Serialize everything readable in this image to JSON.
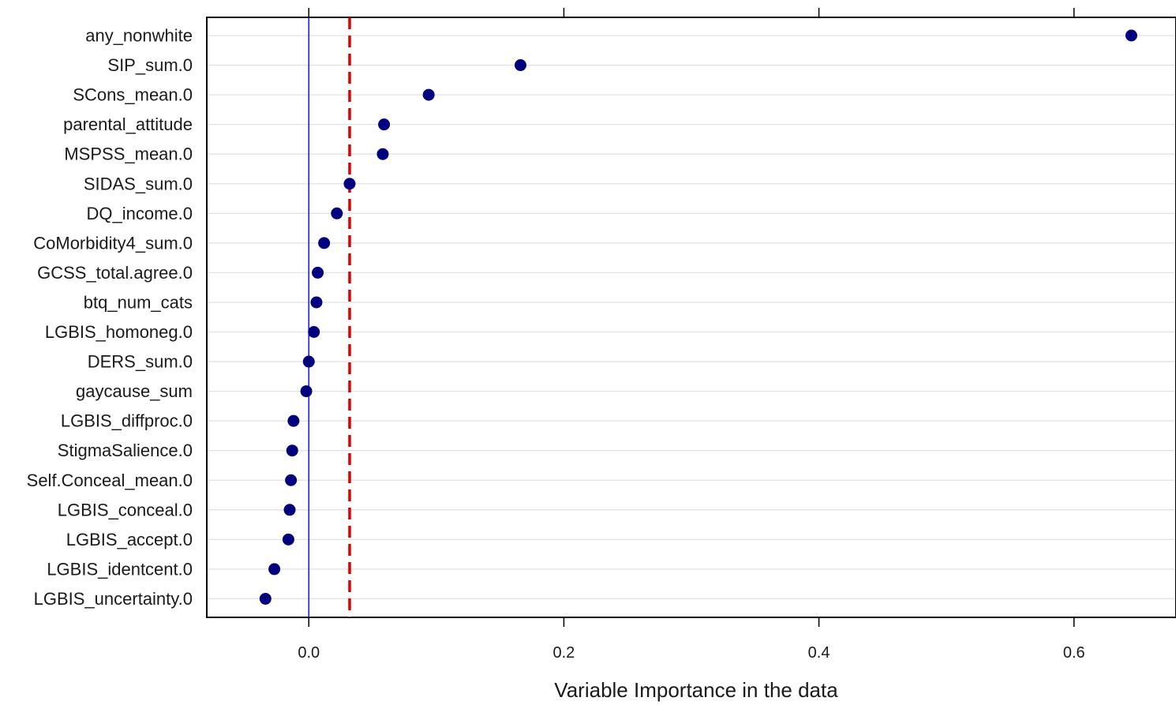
{
  "chart_data": {
    "type": "scatter",
    "xlabel": "Variable Importance in the data",
    "ylabel": "",
    "xlim": [
      -0.08,
      0.68
    ],
    "xticks": [
      0.0,
      0.2,
      0.4,
      0.6
    ],
    "xtick_labels": [
      "0.0",
      "0.2",
      "0.4",
      "0.6"
    ],
    "grid": "horizontal",
    "zero_line": 0.0,
    "threshold_line": 0.032,
    "point_color": "#000080",
    "zero_line_color": "#1f1fe0",
    "threshold_color": "#e00000",
    "categories": [
      "any_nonwhite",
      "SIP_sum.0",
      "SCons_mean.0",
      "parental_attitude",
      "MSPSS_mean.0",
      "SIDAS_sum.0",
      "DQ_income.0",
      "CoMorbidity4_sum.0",
      "GCSS_total.agree.0",
      "btq_num_cats",
      "LGBIS_homoneg.0",
      "DERS_sum.0",
      "gaycause_sum",
      "LGBIS_diffproc.0",
      "StigmaSalience.0",
      "Self.Conceal_mean.0",
      "LGBIS_conceal.0",
      "LGBIS_accept.0",
      "LGBIS_identcent.0",
      "LGBIS_uncertainty.0"
    ],
    "values": [
      0.645,
      0.166,
      0.094,
      0.059,
      0.058,
      0.032,
      0.022,
      0.012,
      0.007,
      0.006,
      0.004,
      0.0,
      -0.002,
      -0.012,
      -0.013,
      -0.014,
      -0.015,
      -0.016,
      -0.027,
      -0.034
    ]
  }
}
